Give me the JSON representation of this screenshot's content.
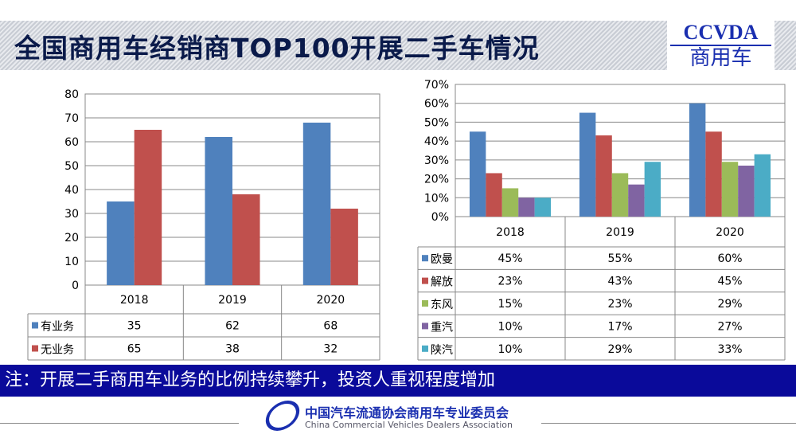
{
  "header": {
    "title": "全国商用车经销商TOP100开展二手车情况",
    "logo_top": "CCVDA",
    "logo_bottom": "商用车"
  },
  "colors": {
    "blue": "#4F81BD",
    "red": "#C0504D",
    "green": "#9BBB59",
    "purple": "#8064A2",
    "cyan": "#4BACC6"
  },
  "chart_data": [
    {
      "type": "bar",
      "categories": [
        "2018",
        "2019",
        "2020"
      ],
      "ylim": [
        0,
        80
      ],
      "yticks": [
        "0",
        "10",
        "20",
        "30",
        "40",
        "50",
        "60",
        "70",
        "80"
      ],
      "series": [
        {
          "name": "有业务",
          "color": "#4F81BD",
          "values": [
            35,
            62,
            68
          ],
          "labels": [
            "35",
            "62",
            "68"
          ]
        },
        {
          "name": "无业务",
          "color": "#C0504D",
          "values": [
            65,
            38,
            32
          ],
          "labels": [
            "65",
            "38",
            "32"
          ]
        }
      ],
      "legend": "data-table"
    },
    {
      "type": "bar",
      "categories": [
        "2018",
        "2019",
        "2020"
      ],
      "ylim": [
        0,
        70
      ],
      "yticks": [
        "0%",
        "10%",
        "20%",
        "30%",
        "40%",
        "50%",
        "60%",
        "70%"
      ],
      "series": [
        {
          "name": "欧曼",
          "color": "#4F81BD",
          "values": [
            45,
            55,
            60
          ],
          "labels": [
            "45%",
            "55%",
            "60%"
          ]
        },
        {
          "name": "解放",
          "color": "#C0504D",
          "values": [
            23,
            43,
            45
          ],
          "labels": [
            "23%",
            "43%",
            "45%"
          ]
        },
        {
          "name": "东风",
          "color": "#9BBB59",
          "values": [
            15,
            23,
            29
          ],
          "labels": [
            "15%",
            "23%",
            "29%"
          ]
        },
        {
          "name": "重汽",
          "color": "#8064A2",
          "values": [
            10,
            17,
            27
          ],
          "labels": [
            "10%",
            "17%",
            "27%"
          ]
        },
        {
          "name": "陕汽",
          "color": "#4BACC6",
          "values": [
            10,
            29,
            33
          ],
          "labels": [
            "10%",
            "29%",
            "33%"
          ]
        }
      ],
      "legend": "data-table"
    }
  ],
  "note": "注：开展二手商用车业务的比例持续攀升，投资人重视程度增加",
  "footer": {
    "cn": "中国汽车流通协会商用车专业委员会",
    "en": "China Commercial Vehicles Dealers Association"
  }
}
